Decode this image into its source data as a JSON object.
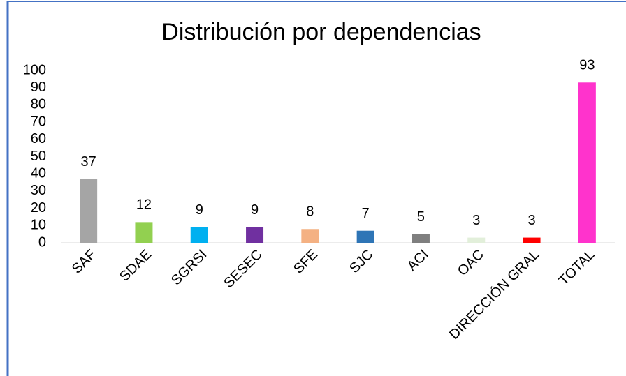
{
  "chart_data": {
    "type": "bar",
    "title": "Distribución por dependencias",
    "categories": [
      "SAF",
      "SDAE",
      "SGRSI",
      "SESEC",
      "SFE",
      "SJC",
      "ACI",
      "OAC",
      "DIRECCIÓN GRAL",
      "TOTAL"
    ],
    "values": [
      37,
      12,
      9,
      9,
      8,
      7,
      5,
      3,
      3,
      93
    ],
    "colors": [
      "#a5a5a5",
      "#92d050",
      "#00b0f0",
      "#7030a0",
      "#f4b183",
      "#2e75b6",
      "#7f7f7f",
      "#e2efda",
      "#ff0000",
      "#ff33cc"
    ],
    "ylim": [
      0,
      100
    ],
    "yticks": [
      0,
      10,
      20,
      30,
      40,
      50,
      60,
      70,
      80,
      90,
      100
    ],
    "grid": false
  }
}
